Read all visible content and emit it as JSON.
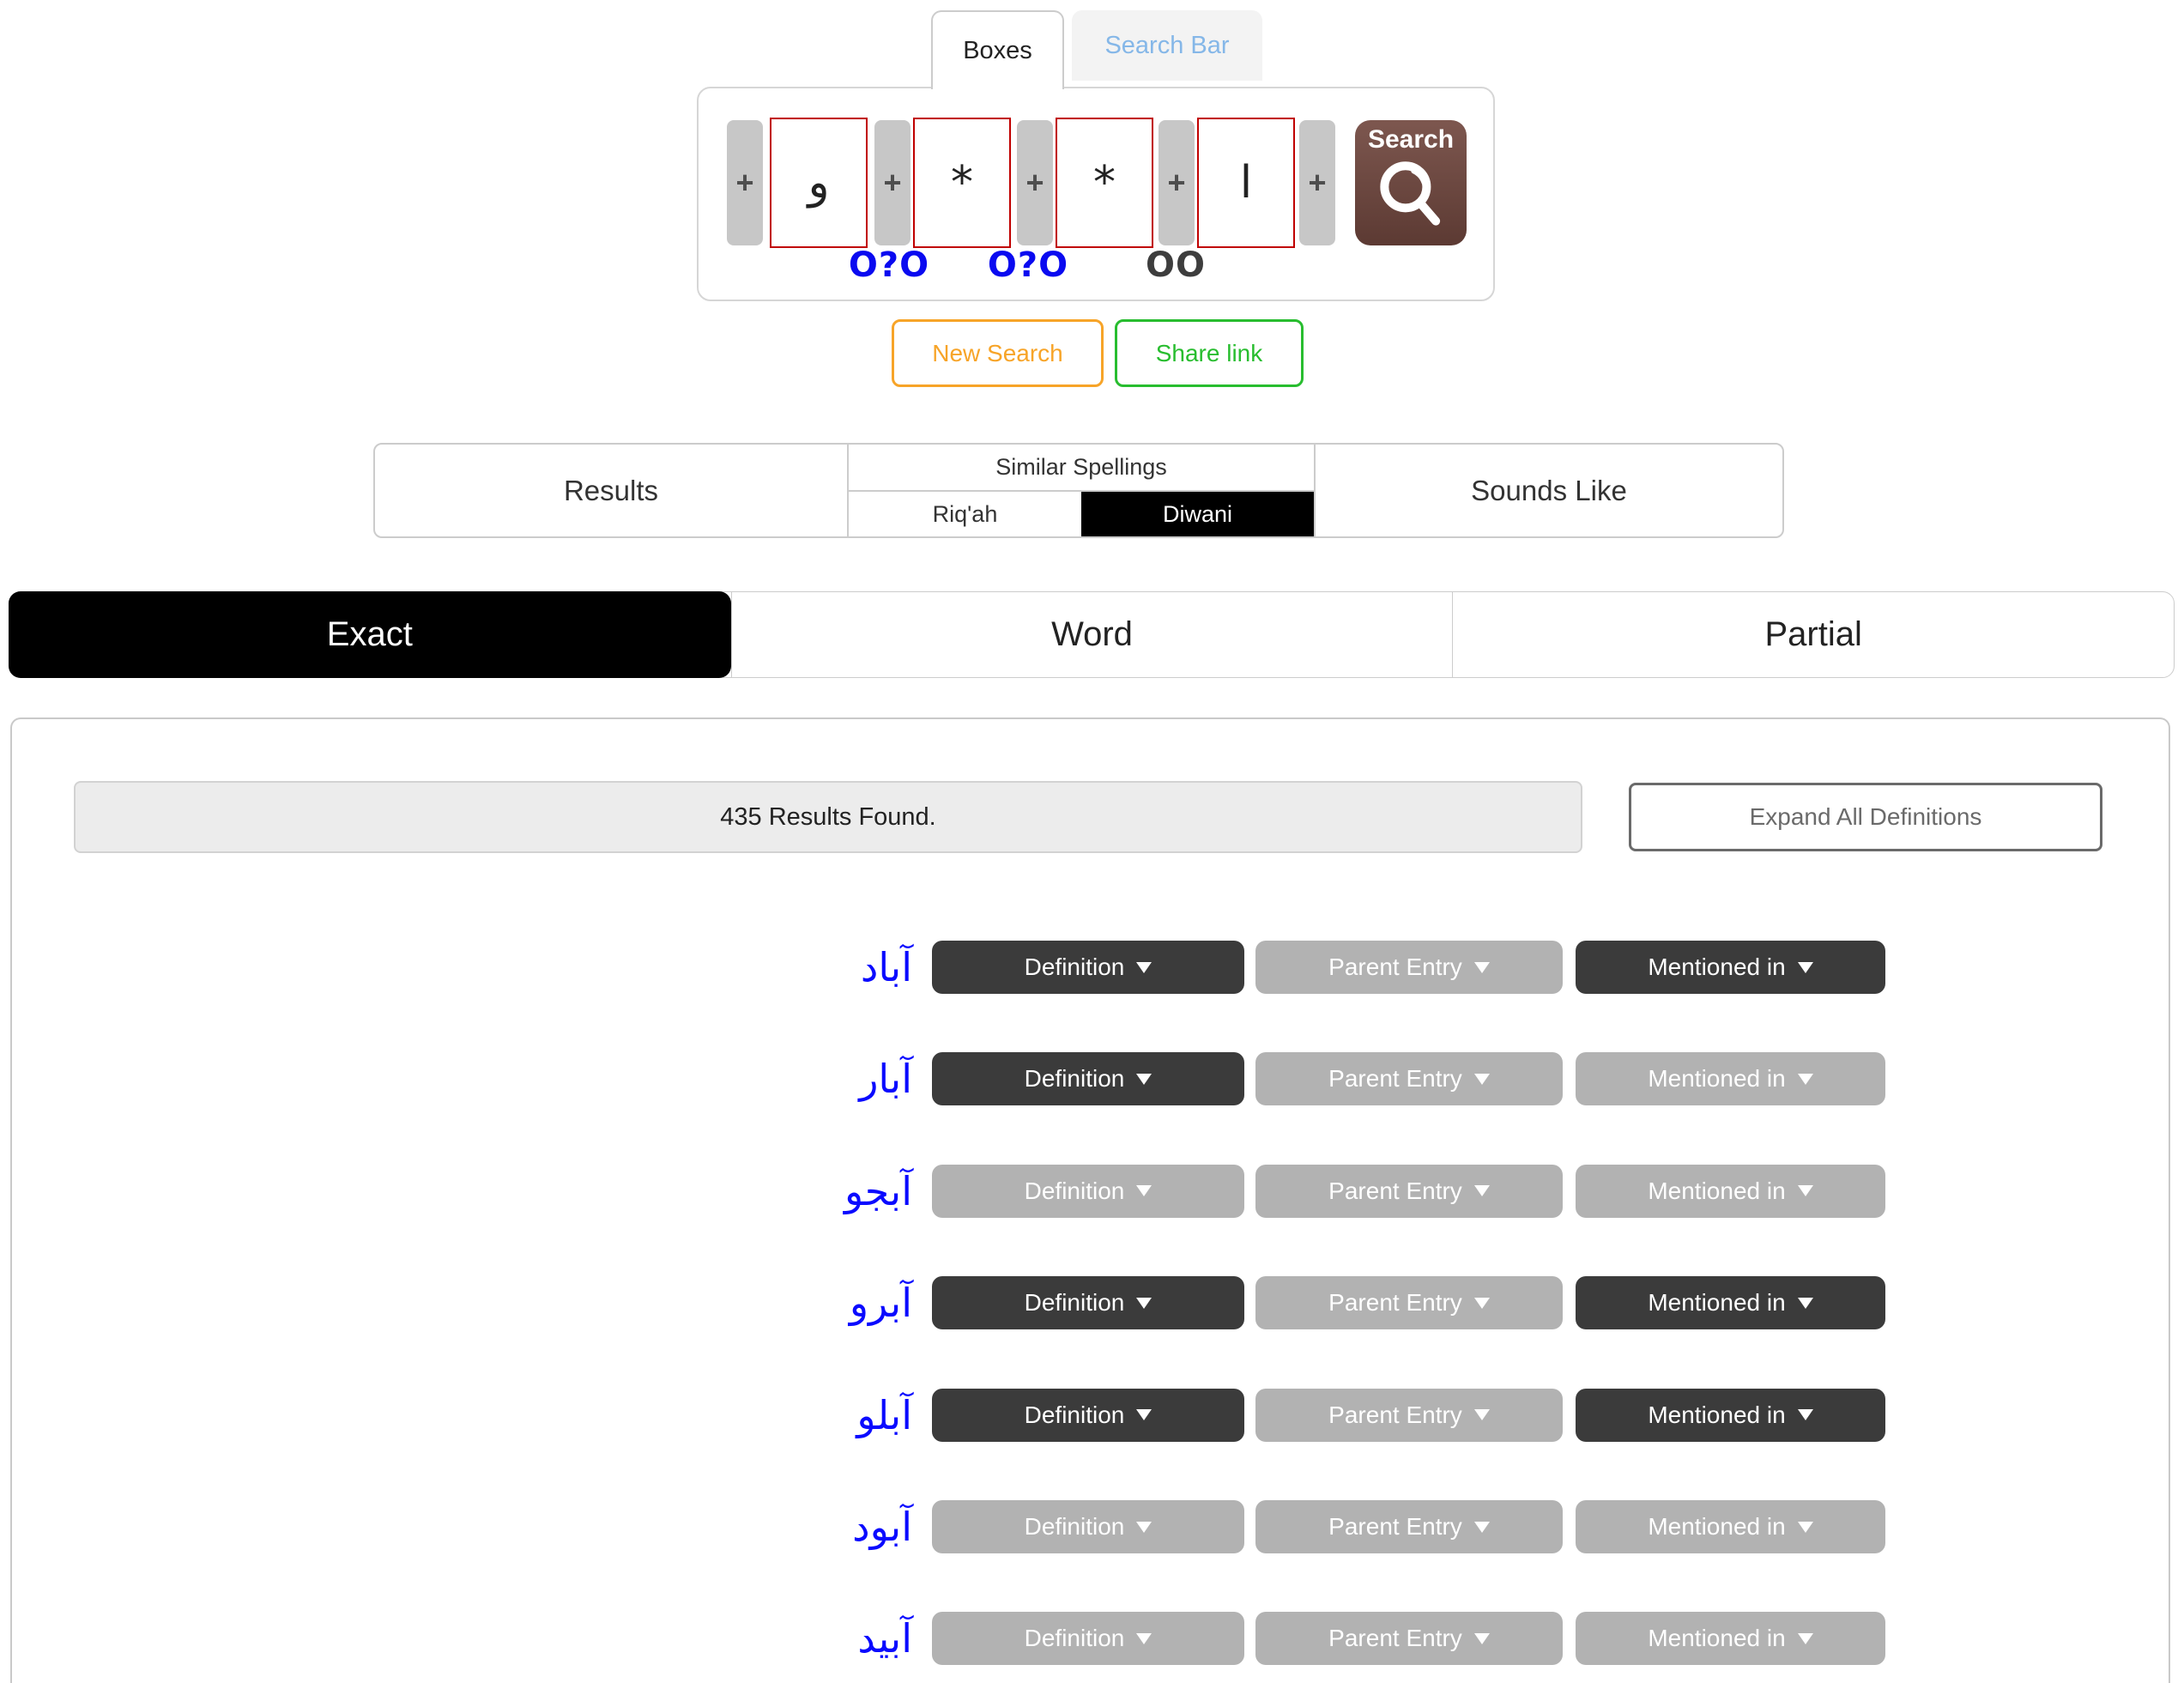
{
  "top_tabs": {
    "boxes_label": "Boxes",
    "search_bar_label": "Search Bar",
    "active": "Boxes"
  },
  "search_builder": {
    "plus_label": "+",
    "boxes": [
      "و",
      "*",
      "*",
      "ا"
    ],
    "search_button_label": "Search",
    "toggles": [
      {
        "label": "O?O",
        "state": "on"
      },
      {
        "label": "O?O",
        "state": "on"
      },
      {
        "label": "OO",
        "state": "off"
      }
    ]
  },
  "action_buttons": {
    "new_search_label": "New Search",
    "share_link_label": "Share link"
  },
  "category_bar": {
    "results_label": "Results",
    "similar_spellings_label": "Similar Spellings",
    "riqah_label": "Riq'ah",
    "diwani_label": "Diwani",
    "sounds_like_label": "Sounds Like",
    "selected_script": "Diwani"
  },
  "match_tabs": {
    "exact_label": "Exact",
    "word_label": "Word",
    "partial_label": "Partial",
    "active": "Exact"
  },
  "results_panel": {
    "count_text": "435 Results Found.",
    "expand_all_label": "Expand All Definitions",
    "button_labels": {
      "definition": "Definition",
      "parent_entry": "Parent Entry",
      "mentioned_in": "Mentioned in"
    },
    "rows": [
      {
        "word": "آباد",
        "definition_enabled": true,
        "parent_entry_enabled": false,
        "mentioned_in_enabled": true
      },
      {
        "word": "آبار",
        "definition_enabled": true,
        "parent_entry_enabled": false,
        "mentioned_in_enabled": false
      },
      {
        "word": "آبجو",
        "definition_enabled": false,
        "parent_entry_enabled": false,
        "mentioned_in_enabled": false
      },
      {
        "word": "آبرو",
        "definition_enabled": true,
        "parent_entry_enabled": false,
        "mentioned_in_enabled": true
      },
      {
        "word": "آبلو",
        "definition_enabled": true,
        "parent_entry_enabled": false,
        "mentioned_in_enabled": true
      },
      {
        "word": "آبود",
        "definition_enabled": false,
        "parent_entry_enabled": false,
        "mentioned_in_enabled": false
      },
      {
        "word": "آبيد",
        "definition_enabled": false,
        "parent_entry_enabled": false,
        "mentioned_in_enabled": false
      }
    ]
  },
  "colors": {
    "toggle_blue": "#0a0af0",
    "toggle_dark": "#3d3d3d",
    "inactive_tab_text": "#85b7e8",
    "letter_box_border_red": "#c00000",
    "search_button_brown": "#6b463e",
    "new_search_orange": "#f7a428",
    "share_link_green": "#28bd2f",
    "result_word_blue": "#0a0aff",
    "row_button_dark": "#3b3b3b",
    "row_button_gray": "#b2b2b2",
    "selected_tab_black": "#000000"
  }
}
